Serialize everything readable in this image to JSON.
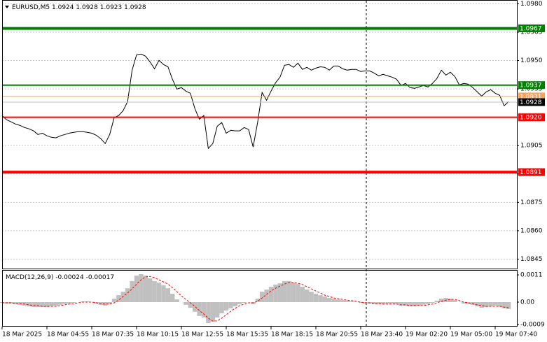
{
  "chart_data": [
    {
      "type": "line",
      "title": "EURUSD,M5",
      "ohlc": [
        1.0924,
        1.0928,
        1.0923,
        1.0928
      ],
      "color": "#000000",
      "categories": [
        "18 Mar 2025",
        null,
        null,
        null,
        null,
        null,
        null,
        null,
        null,
        null,
        "18 Mar 04:55",
        null,
        null,
        null,
        null,
        null,
        null,
        null,
        null,
        null,
        "18 Mar 07:35",
        null,
        null,
        null,
        null,
        null,
        null,
        null,
        null,
        null,
        "18 Mar 10:15",
        null,
        null,
        null,
        null,
        null,
        null,
        null,
        null,
        null,
        "18 Mar 12:55",
        null,
        null,
        null,
        null,
        null,
        null,
        null,
        null,
        null,
        "18 Mar 15:35",
        null,
        null,
        null,
        null,
        null,
        null,
        null,
        null,
        null,
        "18 Mar 18:15",
        null,
        null,
        null,
        null,
        null,
        null,
        null,
        null,
        null,
        "18 Mar 20:55",
        null,
        null,
        null,
        null,
        null,
        null,
        null,
        null,
        null,
        "18 Mar 23:40",
        null,
        null,
        null,
        null,
        null,
        null,
        null,
        null,
        null,
        "19 Mar 02:20",
        null,
        null,
        null,
        null,
        null,
        null,
        null,
        null,
        null,
        "19 Mar 05:00",
        null,
        null,
        null,
        null,
        null,
        null,
        null,
        null,
        null,
        "19 Mar 07:40",
        null,
        null,
        null
      ],
      "values": [
        1.09209,
        1.09187,
        1.09176,
        1.09164,
        1.09157,
        1.09146,
        1.09139,
        1.09128,
        1.09109,
        1.09116,
        1.09102,
        1.09094,
        1.09091,
        1.09102,
        1.09109,
        1.09116,
        1.0912,
        1.09124,
        1.09124,
        1.0912,
        1.09116,
        1.09105,
        1.09087,
        1.09061,
        1.09109,
        1.09198,
        1.09209,
        1.09235,
        1.09283,
        1.09449,
        1.0953,
        1.09534,
        1.09523,
        1.09493,
        1.09456,
        1.09501,
        1.09479,
        1.09467,
        1.09401,
        1.09349,
        1.09357,
        1.09338,
        1.09327,
        1.09246,
        1.0919,
        1.09209,
        1.09035,
        1.09061,
        1.09153,
        1.09172,
        1.09116,
        1.09131,
        1.09128,
        1.09128,
        1.09146,
        1.09135,
        1.09043,
        1.09172,
        1.09331,
        1.0929,
        1.09338,
        1.09382,
        1.09412,
        1.09475,
        1.09479,
        1.09464,
        1.09486,
        1.09453,
        1.09464,
        1.09449,
        1.0946,
        1.09467,
        1.09464,
        1.09449,
        1.09471,
        1.09471,
        1.09456,
        1.09449,
        1.09453,
        1.09453,
        1.09442,
        1.09445,
        1.09445,
        1.09434,
        1.09419,
        1.09427,
        1.09419,
        1.09412,
        1.09401,
        1.09368,
        1.09379,
        1.09357,
        1.09353,
        1.0936,
        1.09368,
        1.0936,
        1.09379,
        1.09405,
        1.09449,
        1.09423,
        1.09438,
        1.09416,
        1.09371,
        1.09379,
        1.09375,
        1.09357,
        1.09334,
        1.09312,
        1.09334,
        1.09346,
        1.09327,
        1.09316,
        1.09261,
        1.09283
      ],
      "ylim": [
        1.084,
        1.0982
      ],
      "yticks": [
        {
          "value": 1.098,
          "label": "1.0980"
        },
        1.0965,
        {
          "value": 1.095,
          "label": "1.0950"
        },
        1.0935,
        1.0905,
        {
          "value": 1.089,
          "label": "1.0890"
        },
        1.0875,
        {
          "value": 1.086,
          "label": "1.0860"
        },
        1.0845
      ],
      "grid": true,
      "levels": [
        {
          "value": 1.0967,
          "color": "#008000",
          "width": 4
        },
        {
          "value": 1.0937,
          "color": "#008000",
          "width": 2
        },
        {
          "value": 1.0931,
          "color": "#f4a460",
          "width": 1
        },
        {
          "value": 1.0928,
          "color": "#c0c0c0",
          "label_color": "#000000",
          "width": 1
        },
        {
          "value": 1.092,
          "label": "1.0920",
          "color": "#ff0000",
          "width": 2
        },
        {
          "value": 1.0891,
          "color": "#ff0000",
          "width": 4
        }
      ]
    },
    {
      "type": "macd",
      "title": "MACD(12,26,9)",
      "readout": [
        -0.00024,
        -0.00017
      ],
      "ylim": [
        -0.00099,
        0.0013
      ],
      "yticks": [
        0.0011,
        {
          "value": 0,
          "label": "0.00"
        },
        -0.0009
      ],
      "series": [
        {
          "kind": "bar",
          "color": "#c0c0c0",
          "values": [
            -3e-05,
            -6e-05,
            -6e-05,
            -8e-05,
            -0.00011,
            -0.00014,
            -0.00017,
            -0.0002,
            -0.0002,
            -0.0002,
            -0.0002,
            -0.00017,
            -0.00014,
            -0.00011,
            -8e-05,
            -6e-05,
            -3e-05,
            0,
            3e-05,
            3e-05,
            0,
            -6e-05,
            -0.00011,
            -0.00014,
            -6e-05,
            0.00014,
            0.00028,
            0.00042,
            0.00056,
            0.00085,
            0.00107,
            0.00113,
            0.00107,
            0.00096,
            0.00085,
            0.00079,
            0.00068,
            0.00056,
            0.00034,
            0.00011,
            0,
            -0.00011,
            -0.00023,
            -0.00039,
            -0.00056,
            -0.00062,
            -0.00085,
            -0.00079,
            -0.00062,
            -0.00045,
            -0.00034,
            -0.00025,
            -0.00017,
            -8e-05,
            -3e-05,
            0,
            -8e-05,
            0.00014,
            0.00042,
            0.00051,
            0.00062,
            0.00071,
            0.00076,
            0.00085,
            0.00085,
            0.00079,
            0.00073,
            0.00062,
            0.00051,
            0.00042,
            0.00034,
            0.00028,
            0.00023,
            0.00017,
            0.00014,
            0.00011,
            8e-05,
            6e-05,
            3e-05,
            0,
            -3e-05,
            -6e-05,
            -6e-05,
            -8e-05,
            -8e-05,
            -8e-05,
            -6e-05,
            -6e-05,
            -8e-05,
            -0.00014,
            -0.00014,
            -0.00017,
            -0.00017,
            -0.00014,
            -0.00011,
            -8e-05,
            -3e-05,
            6e-05,
            0.00014,
            0.00017,
            0.00014,
            8e-05,
            0,
            -6e-05,
            -8e-05,
            -0.00011,
            -0.00017,
            -0.00023,
            -0.0002,
            -0.00017,
            -0.00014,
            -0.00017,
            -0.00025,
            -0.00028
          ]
        },
        {
          "kind": "line",
          "dash": true,
          "color": "#ff0000",
          "values": [
            -3e-05,
            -3e-05,
            -3e-05,
            -6e-05,
            -6e-05,
            -8e-05,
            -0.00011,
            -0.00014,
            -0.00014,
            -0.00017,
            -0.00017,
            -0.00017,
            -0.00017,
            -0.00014,
            -0.00011,
            -8e-05,
            -6e-05,
            -3e-05,
            0,
            0,
            0,
            -3e-05,
            -6e-05,
            -8e-05,
            -8e-05,
            -3e-05,
            8e-05,
            0.00023,
            0.00037,
            0.00054,
            0.00073,
            0.0009,
            0.00102,
            0.00104,
            0.00099,
            0.0009,
            0.00082,
            0.00073,
            0.00059,
            0.00042,
            0.00025,
            0.00011,
            -3e-05,
            -0.00017,
            -0.00034,
            -0.00048,
            -0.00065,
            -0.00076,
            -0.00076,
            -0.00065,
            -0.00051,
            -0.00037,
            -0.00025,
            -0.00014,
            -8e-05,
            -3e-05,
            -3e-05,
            3e-05,
            0.00017,
            0.00031,
            0.00045,
            0.00056,
            0.00065,
            0.00073,
            0.00079,
            0.00079,
            0.00076,
            0.00071,
            0.00062,
            0.00054,
            0.00045,
            0.00037,
            0.00028,
            0.00023,
            0.00017,
            0.00014,
            0.00011,
            8e-05,
            6e-05,
            3e-05,
            0,
            -3e-05,
            -3e-05,
            -6e-05,
            -6e-05,
            -8e-05,
            -8e-05,
            -8e-05,
            -8e-05,
            -0.00011,
            -0.00011,
            -0.00014,
            -0.00014,
            -0.00014,
            -0.00014,
            -0.00011,
            -8e-05,
            -3e-05,
            3e-05,
            8e-05,
            0.00011,
            0.00011,
            6e-05,
            0,
            -3e-05,
            -6e-05,
            -0.00011,
            -0.00014,
            -0.00017,
            -0.00017,
            -0.00017,
            -0.00017,
            -0.0002,
            -0.00023
          ]
        }
      ]
    }
  ]
}
